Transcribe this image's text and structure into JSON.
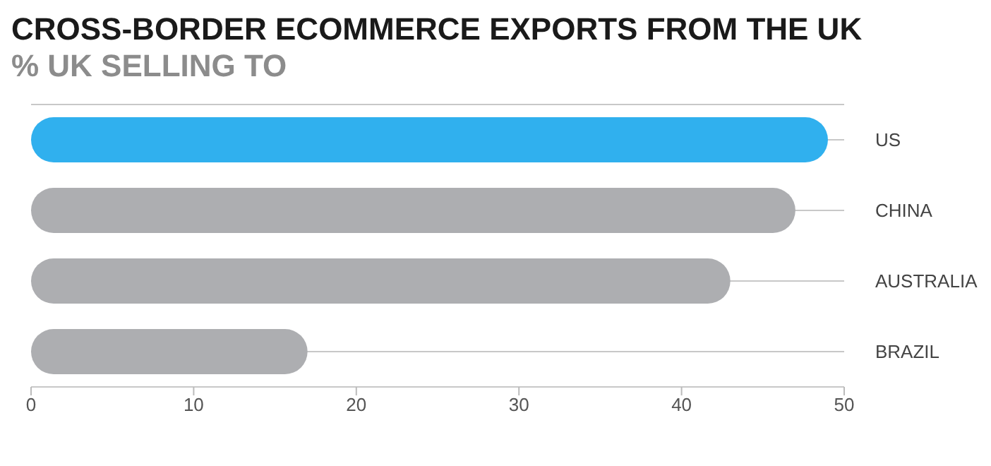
{
  "chart_data": {
    "type": "bar",
    "orientation": "horizontal",
    "title": "CROSS-BORDER ECOMMERCE EXPORTS FROM THE UK",
    "subtitle": "% UK SELLING TO",
    "categories": [
      "US",
      "CHINA",
      "AUSTRALIA",
      "BRAZIL"
    ],
    "values": [
      49,
      47,
      43,
      17
    ],
    "colors": [
      "#30b0ee",
      "#adaeb1",
      "#adaeb1",
      "#adaeb1"
    ],
    "xlim": [
      0,
      50
    ],
    "xticks": [
      0,
      10,
      20,
      30,
      40,
      50
    ],
    "grid": "y",
    "legend": false
  }
}
